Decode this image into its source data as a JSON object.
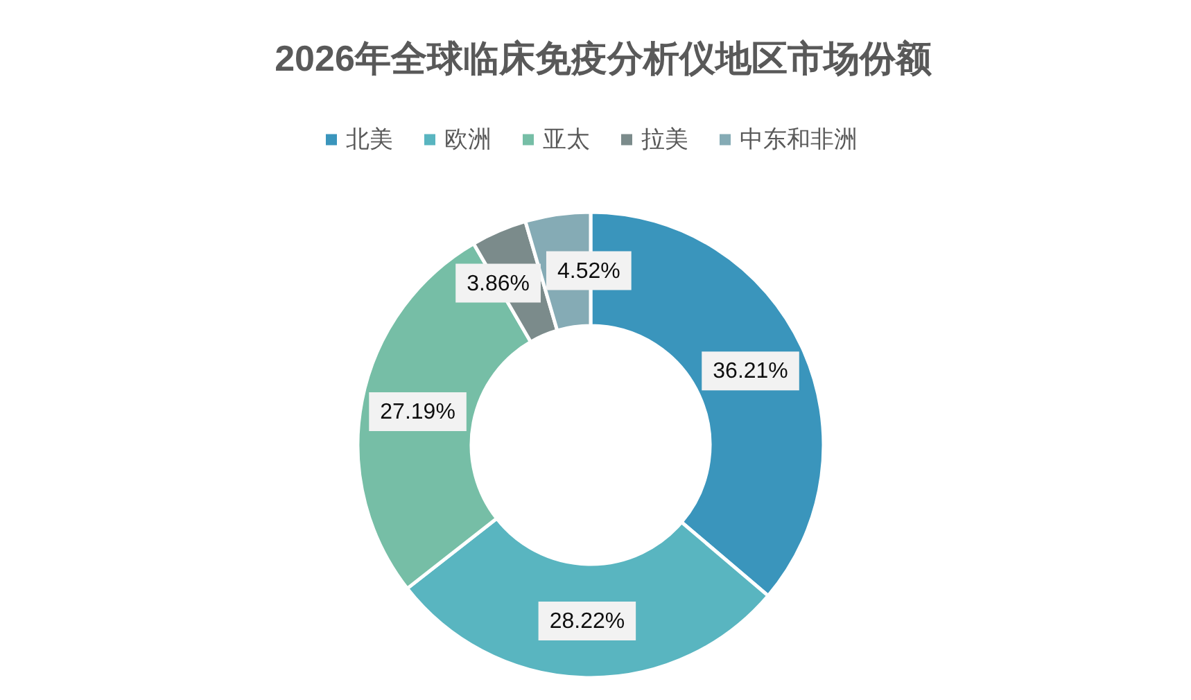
{
  "chart_data": {
    "type": "donut",
    "title": "2026年全球临床免疫分析仪地区市场份额",
    "categories": [
      "北美",
      "欧洲",
      "亚太",
      "拉美",
      "中东和非洲"
    ],
    "values": [
      36.21,
      28.22,
      27.19,
      3.86,
      4.52
    ],
    "colors": [
      "#3a95bc",
      "#59b5c0",
      "#76bea6",
      "#7b8b8b",
      "#85abb5"
    ],
    "value_labels": [
      "36.21%",
      "28.22%",
      "27.19%",
      "3.86%",
      "4.52%"
    ],
    "legend": "top"
  }
}
